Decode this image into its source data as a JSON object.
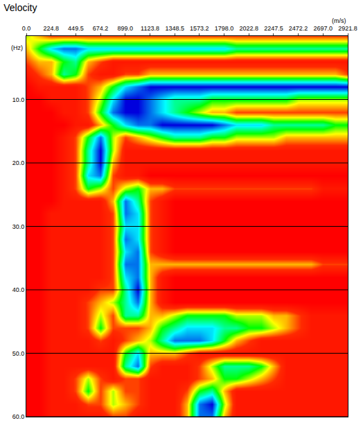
{
  "chart_data": {
    "type": "heatmap",
    "title": "Velocity",
    "x_label": "(m/s)",
    "y_label": "(Hz)",
    "x": [
      0,
      112.4,
      224.8,
      337.2,
      449.6,
      562,
      674.4,
      786.8,
      899.2,
      1011.6,
      1124,
      1236.4,
      1348.8,
      1461.2,
      1573.6,
      1686,
      1798.4,
      1910.8,
      2023.2,
      2135.6,
      2248,
      2360.4,
      2472.8,
      2585.2,
      2697.6,
      2810,
      2921.8
    ],
    "y": [
      0,
      2,
      4,
      6,
      8,
      10,
      12,
      14,
      16,
      18,
      20,
      22,
      24,
      26,
      28,
      30,
      32,
      34,
      36,
      38,
      40,
      42,
      44,
      46,
      48,
      50,
      52,
      54,
      56,
      58,
      60
    ],
    "z": [
      [
        4,
        3,
        2,
        2,
        2,
        2,
        2,
        2,
        2,
        2,
        2,
        2,
        2,
        2,
        2,
        2,
        2,
        2,
        2,
        2,
        2,
        2,
        2,
        2,
        2,
        2,
        2
      ],
      [
        3,
        5,
        7,
        8,
        8,
        7,
        7,
        7,
        7,
        7,
        7,
        7,
        7,
        7,
        7,
        7,
        7,
        6,
        6,
        6,
        6,
        6,
        6,
        6,
        6,
        6,
        6
      ],
      [
        2,
        3,
        3,
        5,
        6,
        3,
        2,
        1,
        1,
        1,
        1,
        1,
        1,
        1,
        1,
        1,
        1,
        1,
        1,
        1,
        1,
        1,
        1,
        1,
        1,
        1,
        1
      ],
      [
        1,
        2,
        3,
        6,
        5,
        2,
        1,
        1,
        2,
        2,
        3,
        3,
        3,
        3,
        3,
        3,
        3,
        3,
        3,
        3,
        3,
        3,
        3,
        3,
        3,
        3,
        2
      ],
      [
        0,
        1,
        1,
        1,
        1,
        2,
        3,
        5,
        7,
        8,
        9,
        9,
        9,
        9,
        9,
        9,
        9,
        9,
        9,
        9,
        9,
        9,
        9,
        9,
        9,
        9,
        9
      ],
      [
        0,
        0,
        1,
        1,
        1,
        2,
        4,
        7,
        9,
        9,
        8,
        7,
        6,
        6,
        6,
        5,
        5,
        5,
        5,
        5,
        5,
        5,
        4,
        4,
        4,
        4,
        4
      ],
      [
        0,
        0,
        0,
        1,
        1,
        2,
        5,
        8,
        9,
        9,
        8,
        7,
        6,
        5,
        4,
        3,
        3,
        2,
        2,
        2,
        2,
        2,
        2,
        2,
        2,
        2,
        2
      ],
      [
        0,
        0,
        0,
        0,
        1,
        1,
        3,
        5,
        7,
        8,
        8,
        9,
        9,
        9,
        9,
        9,
        8,
        7,
        7,
        7,
        6,
        6,
        6,
        6,
        6,
        5,
        5
      ],
      [
        0,
        0,
        0,
        1,
        2,
        5,
        8,
        4,
        2,
        3,
        4,
        5,
        6,
        6,
        6,
        5,
        5,
        4,
        4,
        4,
        4,
        3,
        3,
        3,
        3,
        3,
        3
      ],
      [
        0,
        0,
        0,
        1,
        2,
        6,
        9,
        4,
        1,
        1,
        1,
        1,
        1,
        1,
        1,
        1,
        1,
        1,
        1,
        1,
        1,
        1,
        1,
        1,
        1,
        1,
        1
      ],
      [
        0,
        0,
        0,
        1,
        2,
        6,
        9,
        3,
        1,
        1,
        1,
        1,
        1,
        1,
        1,
        1,
        1,
        1,
        1,
        1,
        1,
        1,
        1,
        1,
        1,
        1,
        1
      ],
      [
        0,
        0,
        0,
        1,
        2,
        7,
        8,
        2,
        1,
        1,
        0,
        0,
        0,
        0,
        0,
        0,
        0,
        0,
        0,
        0,
        0,
        0,
        0,
        0,
        0,
        0,
        0
      ],
      [
        0,
        0,
        0,
        1,
        2,
        5,
        4,
        2,
        4,
        5,
        3,
        3,
        2,
        2,
        2,
        2,
        2,
        2,
        2,
        2,
        2,
        2,
        2,
        2,
        1,
        1,
        1
      ],
      [
        0,
        0,
        0,
        1,
        1,
        1,
        1,
        3,
        8,
        6,
        2,
        1,
        0,
        0,
        0,
        0,
        0,
        0,
        0,
        0,
        0,
        0,
        0,
        0,
        0,
        0,
        0
      ],
      [
        0,
        0,
        1,
        1,
        1,
        1,
        1,
        2,
        8,
        7,
        2,
        1,
        0,
        0,
        0,
        0,
        0,
        0,
        0,
        0,
        0,
        0,
        0,
        0,
        0,
        0,
        0
      ],
      [
        0,
        0,
        1,
        1,
        1,
        1,
        1,
        2,
        7,
        7,
        2,
        1,
        0,
        0,
        0,
        0,
        0,
        0,
        0,
        0,
        0,
        0,
        0,
        0,
        0,
        0,
        0
      ],
      [
        0,
        0,
        1,
        1,
        1,
        1,
        1,
        2,
        8,
        7,
        2,
        1,
        0,
        0,
        0,
        0,
        0,
        0,
        0,
        0,
        0,
        0,
        0,
        0,
        0,
        0,
        0
      ],
      [
        0,
        0,
        1,
        1,
        1,
        1,
        1,
        2,
        7,
        8,
        2,
        1,
        0,
        0,
        0,
        0,
        0,
        0,
        0,
        0,
        0,
        0,
        0,
        0,
        0,
        0,
        0
      ],
      [
        0,
        0,
        1,
        1,
        1,
        1,
        1,
        2,
        8,
        8,
        3,
        3,
        3,
        3,
        3,
        3,
        3,
        3,
        3,
        3,
        3,
        3,
        3,
        3,
        2,
        2,
        2
      ],
      [
        0,
        0,
        1,
        1,
        1,
        1,
        1,
        2,
        7,
        8,
        3,
        1,
        0,
        0,
        0,
        0,
        0,
        0,
        0,
        0,
        0,
        0,
        0,
        0,
        0,
        0,
        0
      ],
      [
        0,
        0,
        1,
        1,
        1,
        1,
        2,
        2,
        6,
        9,
        3,
        1,
        0,
        0,
        0,
        0,
        0,
        0,
        0,
        0,
        0,
        0,
        0,
        0,
        0,
        0,
        0
      ],
      [
        0,
        0,
        1,
        1,
        1,
        2,
        3,
        4,
        6,
        8,
        3,
        1,
        0,
        0,
        0,
        0,
        0,
        0,
        0,
        0,
        0,
        0,
        0,
        0,
        0,
        0,
        0
      ],
      [
        0,
        0,
        1,
        1,
        1,
        2,
        4,
        2,
        6,
        6,
        3,
        3,
        4,
        5,
        5,
        5,
        5,
        4,
        4,
        4,
        3,
        3,
        2,
        1,
        1,
        1,
        1
      ],
      [
        0,
        0,
        1,
        1,
        1,
        2,
        5,
        2,
        2,
        2,
        3,
        5,
        6,
        7,
        7,
        7,
        6,
        6,
        5,
        5,
        4,
        3,
        2,
        1,
        1,
        1,
        1
      ],
      [
        0,
        0,
        1,
        1,
        1,
        1,
        2,
        1,
        2,
        3,
        4,
        6,
        8,
        8,
        8,
        7,
        5,
        3,
        2,
        1,
        1,
        1,
        1,
        1,
        1,
        1,
        1
      ],
      [
        0,
        0,
        1,
        1,
        1,
        1,
        1,
        1,
        5,
        7,
        3,
        3,
        3,
        2,
        1,
        1,
        1,
        1,
        1,
        1,
        1,
        1,
        1,
        1,
        1,
        1,
        1
      ],
      [
        0,
        0,
        1,
        1,
        1,
        1,
        1,
        1,
        6,
        8,
        2,
        1,
        1,
        1,
        2,
        4,
        6,
        6,
        6,
        5,
        3,
        1,
        1,
        1,
        1,
        1,
        1
      ],
      [
        0,
        0,
        1,
        1,
        2,
        4,
        2,
        1,
        2,
        2,
        1,
        1,
        1,
        1,
        2,
        3,
        5,
        5,
        4,
        3,
        2,
        1,
        1,
        1,
        1,
        1,
        1
      ],
      [
        0,
        0,
        1,
        1,
        2,
        5,
        2,
        4,
        2,
        2,
        1,
        1,
        1,
        2,
        5,
        6,
        3,
        1,
        1,
        1,
        1,
        1,
        1,
        1,
        1,
        1,
        1
      ],
      [
        0,
        0,
        1,
        1,
        1,
        2,
        2,
        4,
        3,
        2,
        1,
        1,
        1,
        3,
        8,
        9,
        4,
        1,
        1,
        1,
        1,
        1,
        1,
        1,
        1,
        1,
        1
      ],
      [
        0,
        0,
        1,
        1,
        1,
        1,
        1,
        2,
        2,
        1,
        1,
        1,
        1,
        3,
        8,
        8,
        3,
        1,
        1,
        1,
        1,
        1,
        1,
        1,
        1,
        1,
        1
      ]
    ],
    "zlim": [
      0,
      9
    ],
    "xlim": [
      0,
      2921.8
    ],
    "ylim": [
      60,
      0
    ],
    "xticks": [
      {
        "value": 0,
        "label": "0.0"
      },
      224.8,
      449.5,
      674.2,
      {
        "value": 899,
        "label": "899.0"
      },
      1123.8,
      1348.5,
      1573.2,
      {
        "value": 1798,
        "label": "1798.0"
      },
      2022.8,
      2247.5,
      2472.2,
      {
        "value": 2697,
        "label": "2697.0"
      },
      2921.8
    ],
    "yticks": [
      {
        "value": 10,
        "label": "10.0"
      },
      {
        "value": 20,
        "label": "20.0"
      },
      {
        "value": 30,
        "label": "30.0"
      },
      {
        "value": 40,
        "label": "40.0"
      },
      {
        "value": 50,
        "label": "50.0"
      },
      {
        "value": 60,
        "label": "60.0"
      }
    ],
    "grid": true
  }
}
